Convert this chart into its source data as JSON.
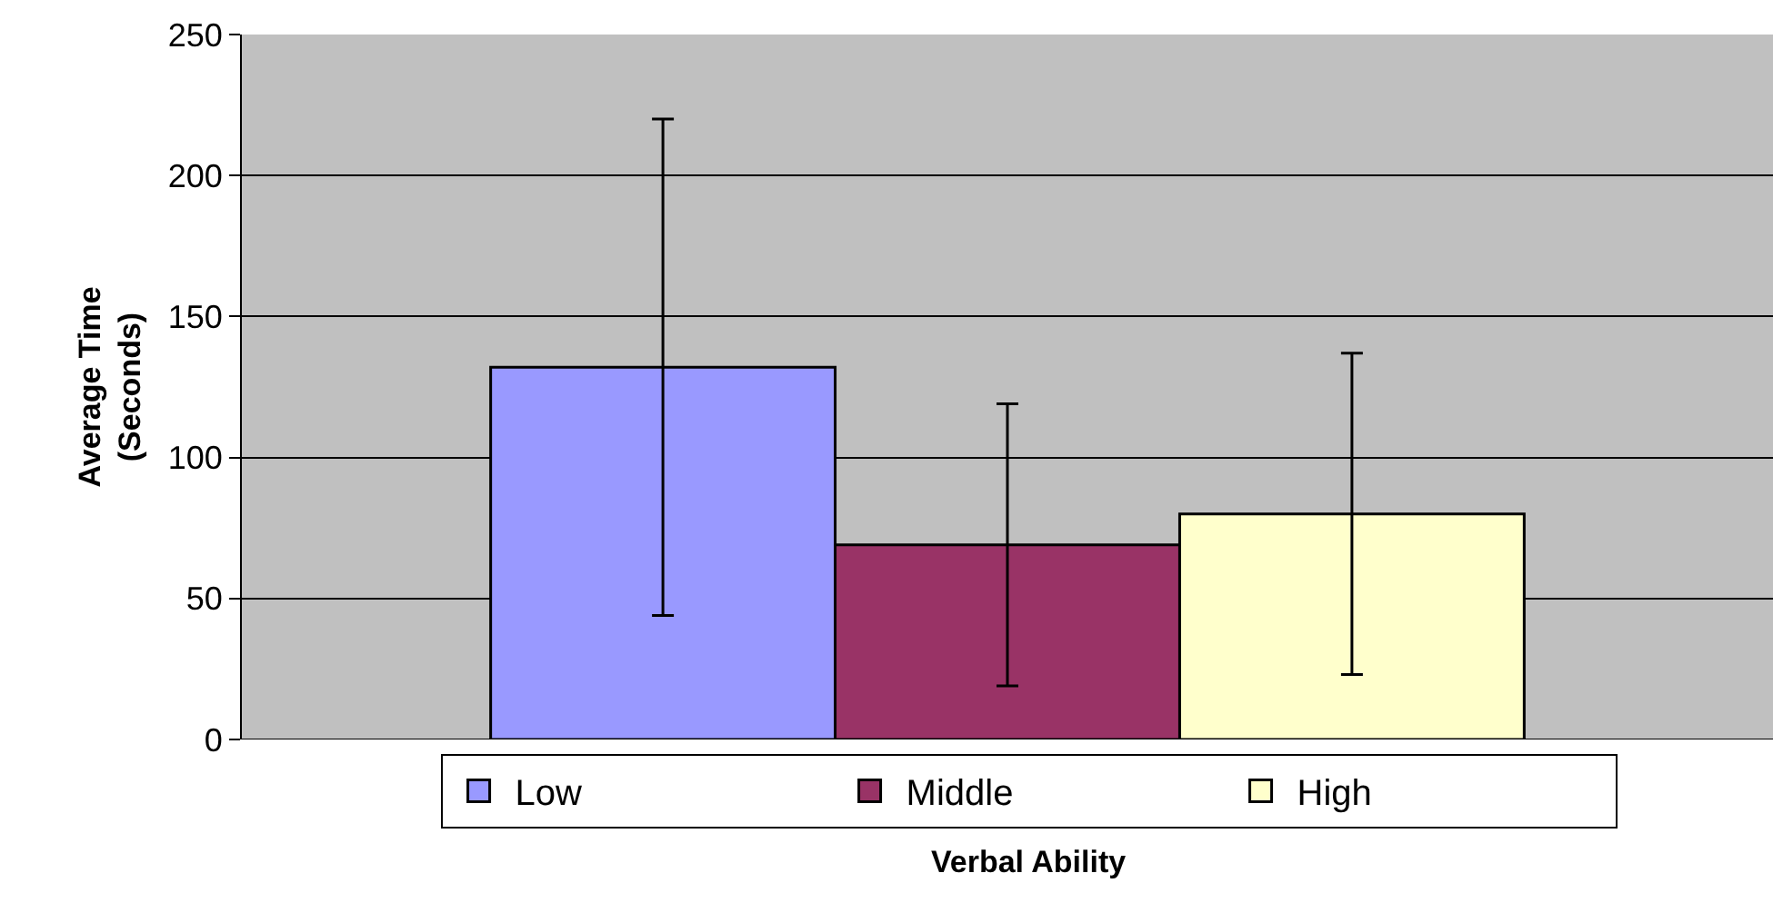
{
  "chart_data": {
    "type": "bar",
    "xlabel": "Verbal Ability",
    "ylabel": "Average Time\n(Seconds)",
    "categories": [
      null
    ],
    "series": [
      {
        "name": "Low",
        "color": "#9999ff",
        "values": [
          132
        ],
        "errors": [
          88
        ]
      },
      {
        "name": "Middle",
        "color": "#993366",
        "values": [
          69
        ],
        "errors": [
          50
        ]
      },
      {
        "name": "High",
        "color": "#ffffcc",
        "values": [
          80
        ],
        "errors": [
          57
        ]
      }
    ],
    "ylim": [
      0,
      250
    ],
    "yticks": [
      0,
      50,
      100,
      150,
      200,
      250
    ],
    "grid": "y",
    "legend": "bottom",
    "tick_labels": "y"
  }
}
